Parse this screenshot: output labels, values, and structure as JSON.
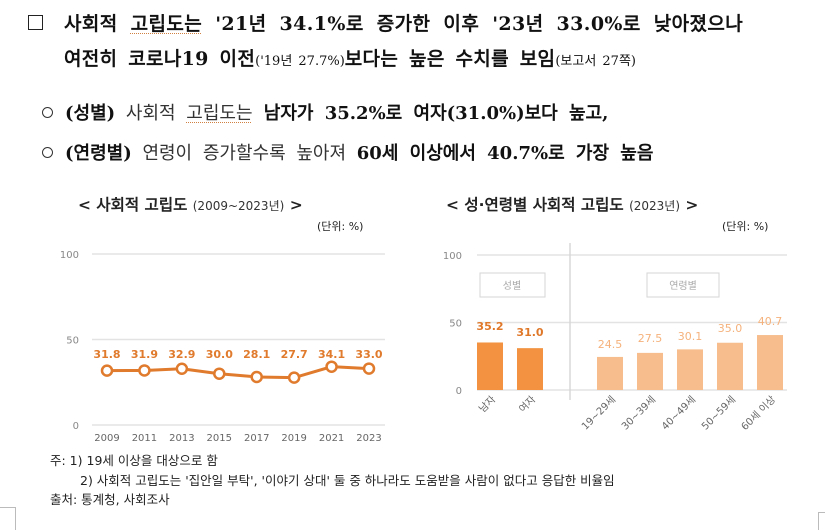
{
  "summary": {
    "main": {
      "line1_a": "사회적 ",
      "line1_b": "고립도는",
      "line1_c": " '21년 34.1%로 증가한 이후 '23년 33.0%로 낮아졌으나",
      "line2_a": "여전히 코로나19 이전",
      "line2_small": "('19년 27.7%)",
      "line2_b": "보다는 높은 수치를 보임",
      "line2_ref": "(보고서 27쪽)"
    },
    "bullets": [
      {
        "tag": "(성별)",
        "text_a": " 사회적 ",
        "text_ul": "고립도는",
        "text_b": " 남자가 35.2%로 여자(31.0%)보다 높고,"
      },
      {
        "tag": "(연령별)",
        "text_a": " 연령이 증가할수록 높아져 ",
        "text_b": "60세 이상에서 40.7%로 가장 높음"
      }
    ]
  },
  "charts": {
    "left": {
      "title_main": "< 사회적 고립도 ",
      "title_sub": "(2009~2023년)",
      "title_end": " >",
      "unit": "(단위: %)"
    },
    "right": {
      "title_main": "< 성·연령별 사회적 고립도 ",
      "title_sub": "(2023년)",
      "title_end": " >",
      "unit": "(단위: %)",
      "group_labels": [
        "성별",
        "연령별"
      ]
    }
  },
  "notes": {
    "note1": "주: 1) 19세 이상을 대상으로 함",
    "note2": "2) 사회적 고립도는 '집안일 부탁', '이야기 상대' 둘 중 하나라도 도움받을 사람이 없다고 응답한 비율임",
    "source": "출처: 통계청, 사회조사"
  },
  "colors": {
    "line": "#e07a2c",
    "bar_sex": "#f39341",
    "bar_age": "#f7bd8c",
    "grid": "#e3e3e3"
  },
  "chart_data": [
    {
      "type": "line",
      "title": "사회적 고립도 (2009~2023년)",
      "unit": "%",
      "xlabel": "",
      "ylabel": "",
      "x": [
        "2009",
        "2011",
        "2013",
        "2015",
        "2017",
        "2019",
        "2021",
        "2023"
      ],
      "values": [
        31.8,
        31.9,
        32.9,
        30.0,
        28.1,
        27.7,
        34.1,
        33.0
      ],
      "yticks": [
        0,
        50,
        100
      ],
      "ylim": [
        0,
        100
      ],
      "grid": true
    },
    {
      "type": "bar",
      "title": "성·연령별 사회적 고립도 (2023년)",
      "unit": "%",
      "groups": [
        {
          "name": "성별",
          "categories": [
            "남자",
            "여자"
          ],
          "values": [
            35.2,
            31.0
          ]
        },
        {
          "name": "연령별",
          "categories": [
            "19~29세",
            "30~39세",
            "40~49세",
            "50~59세",
            "60세 이상"
          ],
          "values": [
            24.5,
            27.5,
            30.1,
            35.0,
            40.7
          ]
        }
      ],
      "categories": [
        "남자",
        "여자",
        "19~29세",
        "30~39세",
        "40~49세",
        "50~59세",
        "60세 이상"
      ],
      "values": [
        35.2,
        31.0,
        24.5,
        27.5,
        30.1,
        35.0,
        40.7
      ],
      "yticks": [
        0,
        50,
        100
      ],
      "ylim": [
        0,
        100
      ],
      "grid": true
    }
  ]
}
